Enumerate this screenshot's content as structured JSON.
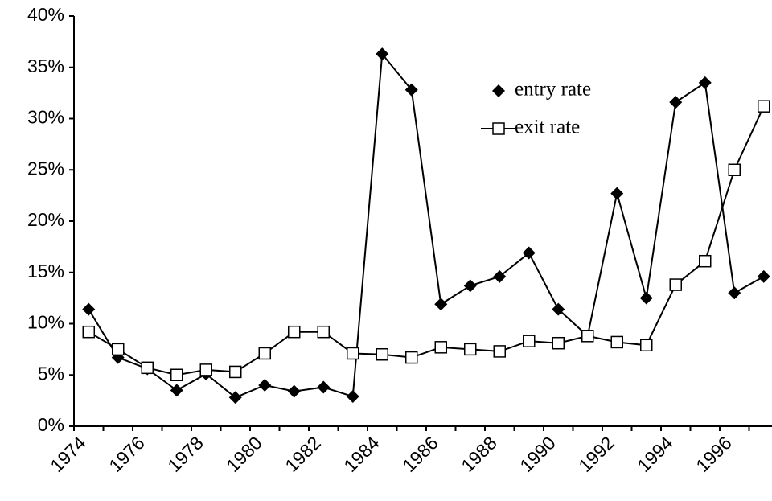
{
  "chart_data": {
    "type": "line",
    "categories": [
      "1974",
      null,
      "1976",
      null,
      "1978",
      null,
      "1980",
      null,
      "1982",
      null,
      "1984",
      null,
      "1986",
      null,
      "1988",
      null,
      "1990",
      null,
      "1992",
      null,
      "1994",
      null,
      "1996",
      null
    ],
    "series": [
      {
        "name": "entry rate",
        "color": "#000000",
        "values": [
          11.4,
          6.7,
          5.6,
          3.5,
          5.1,
          2.8,
          4.0,
          3.4,
          3.8,
          2.9,
          36.3,
          32.8,
          11.9,
          13.7,
          14.6,
          16.9,
          11.4,
          8.8,
          22.7,
          12.5,
          31.6,
          33.5,
          13.0,
          14.6
        ]
      },
      {
        "name": "exit rate",
        "color": "#000000",
        "values": [
          9.2,
          7.5,
          5.7,
          5.0,
          5.5,
          5.3,
          7.1,
          9.2,
          9.2,
          7.1,
          7.0,
          6.7,
          7.7,
          7.5,
          7.3,
          8.3,
          8.1,
          8.8,
          8.2,
          7.9,
          13.8,
          16.1,
          25.0,
          31.2
        ]
      }
    ],
    "ylim": [
      0,
      40
    ],
    "yticks": [
      {
        "value": 0,
        "label": "0%"
      },
      {
        "value": 5,
        "label": "5%"
      },
      {
        "value": 10,
        "label": "10%"
      },
      {
        "value": 15,
        "label": "15%"
      },
      {
        "value": 20,
        "label": "20%"
      },
      {
        "value": 25,
        "label": "25%"
      },
      {
        "value": 30,
        "label": "30%"
      },
      {
        "value": 35,
        "label": "35%"
      },
      {
        "value": 40,
        "label": "40%"
      }
    ],
    "grid": false
  }
}
